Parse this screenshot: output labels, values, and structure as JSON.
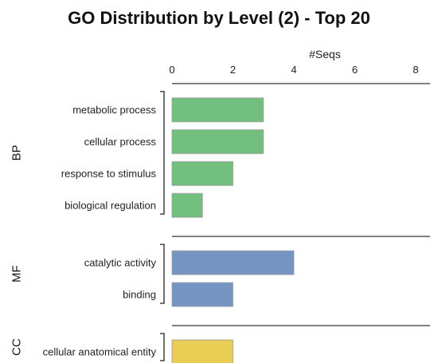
{
  "chart_data": {
    "type": "bar",
    "orientation": "horizontal",
    "title": "GO Distribution by Level (2) - Top 20",
    "xlabel": "#Seqs",
    "xlim": [
      0,
      8
    ],
    "xticks": [
      0,
      2,
      4,
      6,
      8
    ],
    "xaxis_position": "top",
    "grid": false,
    "groups": [
      {
        "name": "BP",
        "color": "#73bf7f",
        "categories": [
          "metabolic process",
          "cellular process",
          "response to stimulus",
          "biological regulation"
        ],
        "values": [
          3,
          3,
          2,
          1
        ]
      },
      {
        "name": "MF",
        "color": "#7694c2",
        "categories": [
          "catalytic activity",
          "binding"
        ],
        "values": [
          4,
          2
        ]
      },
      {
        "name": "CC",
        "color": "#eacd55",
        "categories": [
          "cellular anatomical entity"
        ],
        "values": [
          2
        ]
      }
    ]
  }
}
